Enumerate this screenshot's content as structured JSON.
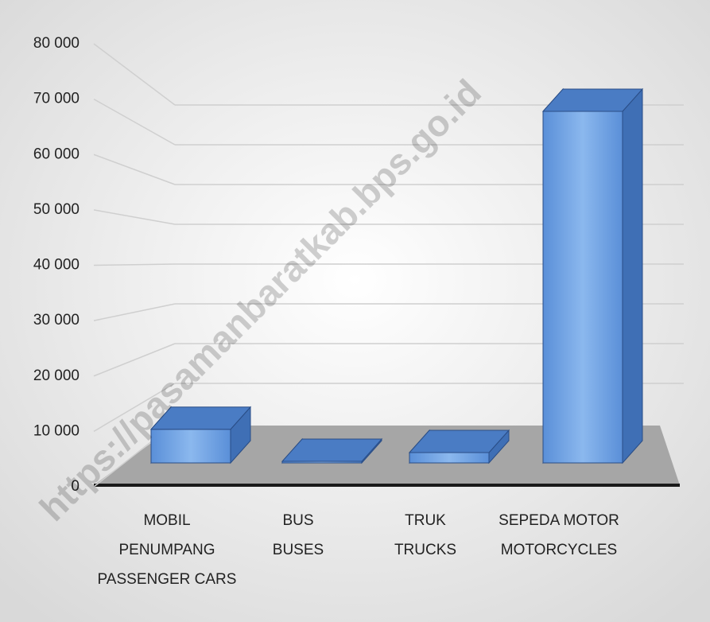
{
  "chart_data": {
    "type": "bar3d",
    "categories": [
      [
        "MOBIL",
        "PENUMPANG",
        "PASSENGER CARS"
      ],
      [
        "BUS",
        "BUSES"
      ],
      [
        "TRUK",
        "TRUCKS"
      ],
      [
        "SEPEDA MOTOR",
        "MOTORCYCLES"
      ]
    ],
    "values": [
      6500,
      300,
      2000,
      68000
    ],
    "color": "#5b8fd6",
    "ylim": [
      0,
      80000
    ],
    "yticks": [
      {
        "value": 0,
        "label": "0"
      },
      {
        "value": 10000,
        "label": "10 000"
      },
      {
        "value": 20000,
        "label": "20 000"
      },
      {
        "value": 30000,
        "label": "30 000"
      },
      {
        "value": 40000,
        "label": "40 000"
      },
      {
        "value": 50000,
        "label": "50 000"
      },
      {
        "value": 60000,
        "label": "60 000"
      },
      {
        "value": 70000,
        "label": "70 000"
      },
      {
        "value": 80000,
        "label": "80 000"
      }
    ],
    "grid": true,
    "watermark": "https://pasamanbaratkab.bps.go.id"
  }
}
